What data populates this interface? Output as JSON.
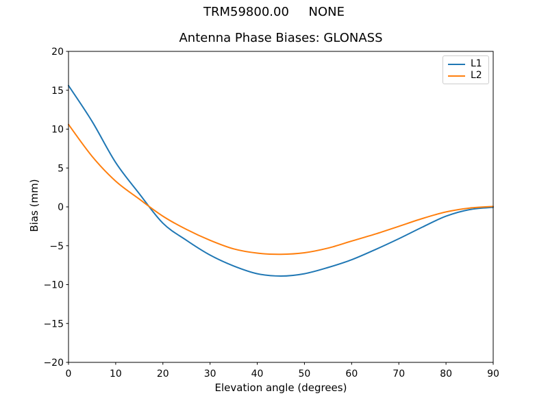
{
  "figure": {
    "suptitle": "TRM59800.00     NONE",
    "background": "#ffffff",
    "spine_color": "#000000"
  },
  "chart_data": {
    "type": "line",
    "title": "Antenna Phase Biases: GLONASS",
    "xlabel": "Elevation angle (degrees)",
    "ylabel": "Bias (mm)",
    "xlim": [
      0,
      90
    ],
    "ylim": [
      -20,
      20
    ],
    "x_ticks": [
      0,
      10,
      20,
      30,
      40,
      50,
      60,
      70,
      80,
      90
    ],
    "y_ticks": [
      -20,
      -15,
      -10,
      -5,
      0,
      5,
      10,
      15,
      20
    ],
    "grid": false,
    "legend_position": "upper right",
    "x": [
      0,
      5,
      10,
      15,
      20,
      25,
      30,
      35,
      40,
      45,
      50,
      55,
      60,
      65,
      70,
      75,
      80,
      85,
      90
    ],
    "series": [
      {
        "name": "L1",
        "color": "#1f77b4",
        "values": [
          15.6,
          11.0,
          5.7,
          1.7,
          -2.1,
          -4.3,
          -6.2,
          -7.6,
          -8.6,
          -8.9,
          -8.6,
          -7.8,
          -6.8,
          -5.5,
          -4.1,
          -2.6,
          -1.2,
          -0.35,
          -0.05
        ]
      },
      {
        "name": "L2",
        "color": "#ff7f0e",
        "values": [
          10.6,
          6.5,
          3.3,
          1.0,
          -1.2,
          -2.9,
          -4.3,
          -5.4,
          -5.95,
          -6.1,
          -5.9,
          -5.3,
          -4.4,
          -3.5,
          -2.5,
          -1.5,
          -0.65,
          -0.15,
          0.05
        ]
      }
    ]
  }
}
